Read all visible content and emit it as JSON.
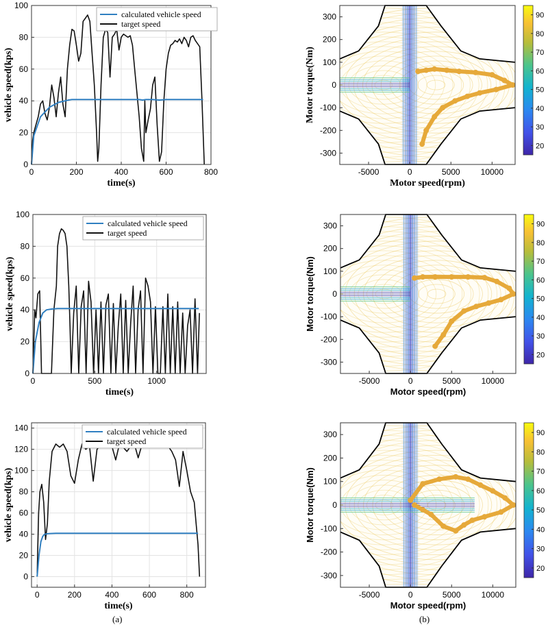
{
  "figure": {
    "caption_a": "(a)",
    "caption_b": "(b)"
  },
  "colors": {
    "calculated": "#2f7fc1",
    "target": "#111111",
    "operating_points": "#e6a93a",
    "boundary": "#000000"
  },
  "chart_data": [
    {
      "type": "line",
      "panel": "a1",
      "xlabel": "time(s)",
      "ylabel": "vehicle speed(kps)",
      "xlim": [
        0,
        800
      ],
      "ylim": [
        0,
        100
      ],
      "xticks": [
        0,
        200,
        400,
        600,
        800
      ],
      "yticks": [
        0,
        20,
        40,
        60,
        80,
        100
      ],
      "grid": true,
      "legend_position": "top-left",
      "series": [
        {
          "name": "calculated vehicle speed",
          "x": [
            0,
            10,
            40,
            80,
            120,
            150,
            165,
            180,
            200,
            300,
            350,
            400,
            480,
            495,
            510,
            540,
            570,
            600,
            700,
            750,
            765
          ],
          "y": [
            0,
            18,
            30,
            36,
            39,
            40,
            40.5,
            40.8,
            40.8,
            40.8,
            40.8,
            40.8,
            40.8,
            40.5,
            40.8,
            40.8,
            40.5,
            40.8,
            40.8,
            40.8,
            40.8
          ]
        },
        {
          "name": "target speed",
          "x": [
            0,
            5,
            10,
            20,
            30,
            40,
            50,
            60,
            70,
            80,
            90,
            100,
            110,
            120,
            130,
            140,
            150,
            160,
            170,
            180,
            190,
            200,
            210,
            220,
            230,
            240,
            250,
            260,
            270,
            280,
            290,
            295,
            300,
            310,
            320,
            330,
            340,
            350,
            360,
            370,
            380,
            390,
            400,
            410,
            420,
            430,
            440,
            450,
            460,
            470,
            480,
            490,
            500,
            505,
            510,
            520,
            530,
            540,
            550,
            560,
            570,
            580,
            590,
            600,
            610,
            620,
            630,
            640,
            650,
            660,
            670,
            680,
            690,
            700,
            710,
            720,
            730,
            740,
            750,
            760,
            770
          ],
          "y": [
            0,
            15,
            20,
            25,
            30,
            38,
            40,
            32,
            28,
            36,
            50,
            42,
            30,
            45,
            55,
            38,
            30,
            60,
            75,
            85,
            84,
            75,
            65,
            70,
            90,
            92,
            94,
            90,
            70,
            50,
            20,
            2,
            10,
            50,
            80,
            85,
            83,
            55,
            80,
            82,
            85,
            72,
            80,
            82,
            81,
            80,
            81,
            75,
            60,
            45,
            30,
            10,
            2,
            40,
            20,
            28,
            35,
            50,
            55,
            25,
            2,
            8,
            40,
            60,
            70,
            75,
            76,
            78,
            77,
            79,
            76,
            80,
            78,
            74,
            80,
            81,
            78,
            76,
            74,
            40,
            0
          ]
        }
      ]
    },
    {
      "type": "line",
      "panel": "a2",
      "xlabel": "time(s)",
      "ylabel": "vehicle speed(kps)",
      "xlim": [
        0,
        1400
      ],
      "ylim": [
        0,
        100
      ],
      "xticks": [
        0,
        500,
        1000
      ],
      "yticks": [
        0,
        20,
        40,
        60,
        80,
        100
      ],
      "grid": true,
      "legend_position": "top-right",
      "series": [
        {
          "name": "calculated vehicle speed",
          "x": [
            0,
            20,
            50,
            80,
            110,
            150,
            200,
            300,
            500,
            700,
            900,
            1000,
            1100,
            1340
          ],
          "y": [
            0,
            20,
            32,
            38,
            40,
            40.5,
            40.8,
            40.8,
            40.8,
            40.8,
            40.8,
            40.8,
            40.8,
            40.8
          ]
        },
        {
          "name": "target speed",
          "x": [
            0,
            15,
            25,
            40,
            55,
            70,
            90,
            110,
            130,
            150,
            170,
            190,
            200,
            215,
            230,
            245,
            260,
            275,
            290,
            300,
            310,
            330,
            350,
            370,
            390,
            410,
            430,
            450,
            470,
            490,
            510,
            530,
            550,
            570,
            590,
            610,
            630,
            650,
            670,
            690,
            710,
            730,
            750,
            770,
            790,
            810,
            830,
            850,
            870,
            890,
            910,
            930,
            950,
            970,
            990,
            1010,
            1030,
            1050,
            1070,
            1090,
            1110,
            1130,
            1150,
            1170,
            1190,
            1210,
            1230,
            1250,
            1270,
            1290,
            1310,
            1330,
            1345
          ],
          "y": [
            0,
            40,
            35,
            50,
            52,
            0,
            0,
            0,
            0,
            0,
            40,
            55,
            80,
            88,
            91,
            90,
            88,
            80,
            55,
            30,
            0,
            38,
            55,
            0,
            42,
            52,
            0,
            58,
            45,
            0,
            40,
            0,
            45,
            0,
            43,
            50,
            0,
            44,
            0,
            30,
            50,
            0,
            46,
            0,
            32,
            55,
            0,
            40,
            52,
            0,
            60,
            55,
            45,
            0,
            42,
            0,
            0,
            42,
            0,
            50,
            0,
            42,
            0,
            45,
            0,
            38,
            0,
            30,
            40,
            0,
            47,
            0,
            38
          ]
        }
      ]
    },
    {
      "type": "line",
      "panel": "a3",
      "xlabel": "time(s)",
      "ylabel": "vehicle speed(kps)",
      "xlim": [
        -30,
        900
      ],
      "ylim": [
        -10,
        145
      ],
      "xticks": [
        0,
        200,
        400,
        600,
        800
      ],
      "yticks": [
        0,
        20,
        40,
        60,
        80,
        100,
        120,
        140
      ],
      "grid": true,
      "legend_position": "top-right",
      "series": [
        {
          "name": "calculated vehicle speed",
          "x": [
            0,
            10,
            20,
            30,
            40,
            60,
            100,
            200,
            400,
            600,
            800,
            860
          ],
          "y": [
            0,
            20,
            33,
            38,
            40,
            40.5,
            40.8,
            40.8,
            40.8,
            40.8,
            40.8,
            40.8
          ]
        },
        {
          "name": "target speed",
          "x": [
            0,
            8,
            15,
            25,
            35,
            45,
            55,
            65,
            80,
            100,
            120,
            140,
            160,
            180,
            200,
            220,
            240,
            260,
            280,
            300,
            320,
            340,
            360,
            380,
            400,
            420,
            440,
            460,
            480,
            500,
            520,
            540,
            560,
            580,
            600,
            620,
            640,
            660,
            680,
            700,
            720,
            740,
            760,
            780,
            800,
            820,
            840,
            850,
            860,
            868
          ],
          "y": [
            0,
            60,
            80,
            87,
            70,
            35,
            50,
            90,
            118,
            125,
            122,
            125,
            118,
            95,
            88,
            110,
            125,
            120,
            123,
            90,
            120,
            124,
            122,
            125,
            123,
            110,
            125,
            122,
            118,
            123,
            125,
            112,
            124,
            122,
            125,
            123,
            122,
            124,
            125,
            123,
            118,
            110,
            85,
            118,
            100,
            80,
            70,
            50,
            30,
            0
          ]
        }
      ]
    },
    {
      "type": "heatmap",
      "panel": "b1",
      "xlabel": "Motor speed(rpm)",
      "ylabel": "Motor torque(Nm)",
      "xlim": [
        -8500,
        12800
      ],
      "ylim": [
        -350,
        350
      ],
      "xticks": [
        -5000,
        0,
        5000,
        10000
      ],
      "yticks": [
        -300,
        -200,
        -100,
        0,
        100,
        200,
        300
      ],
      "colorbar": {
        "ticks": [
          20,
          30,
          40,
          50,
          60,
          70,
          80,
          90
        ],
        "range": [
          15,
          95
        ]
      },
      "boundary": {
        "upper": {
          "x": [
            -8500,
            -6200,
            -3800,
            -3000,
            -1800,
            2000,
            3800,
            6200,
            8500,
            12800
          ],
          "y": [
            115,
            150,
            260,
            350,
            350,
            350,
            260,
            150,
            115,
            100
          ]
        },
        "lower": {
          "x": [
            -8500,
            -6200,
            -3800,
            -3000,
            -1800,
            2000,
            3800,
            6200,
            8500,
            12800
          ],
          "y": [
            -115,
            -150,
            -260,
            -350,
            -350,
            -350,
            -260,
            -150,
            -115,
            -100
          ]
        }
      },
      "operating_points": {
        "x": [
          1000,
          2000,
          3000,
          4500,
          6000,
          8000,
          10000,
          11500,
          12500,
          10500,
          8500,
          7000,
          5500,
          4000,
          3000,
          2000,
          1500
        ],
        "y": [
          60,
          65,
          70,
          65,
          60,
          55,
          45,
          20,
          0,
          -20,
          -35,
          -50,
          -70,
          -100,
          -140,
          -200,
          -260
        ]
      }
    },
    {
      "type": "heatmap",
      "panel": "b2",
      "xlabel": "Motor speed(rpm)",
      "ylabel": "Motor torque(Nm)",
      "xlim": [
        -8500,
        12800
      ],
      "ylim": [
        -350,
        350
      ],
      "xticks": [
        -5000,
        0,
        5000,
        10000
      ],
      "yticks": [
        -300,
        -200,
        -100,
        0,
        100,
        200,
        300
      ],
      "colorbar": {
        "ticks": [
          20,
          30,
          40,
          50,
          60,
          70,
          80,
          90
        ],
        "range": [
          15,
          95
        ]
      },
      "boundary": {
        "upper": {
          "x": [
            -8500,
            -6200,
            -3800,
            -3000,
            -1800,
            2000,
            3800,
            6200,
            8500,
            12800
          ],
          "y": [
            115,
            150,
            260,
            350,
            350,
            350,
            260,
            150,
            115,
            100
          ]
        },
        "lower": {
          "x": [
            -8500,
            -6200,
            -3800,
            -3000,
            -1800,
            2000,
            3800,
            6200,
            8500,
            12800
          ],
          "y": [
            -115,
            -150,
            -260,
            -350,
            -350,
            -350,
            -260,
            -150,
            -115,
            -100
          ]
        }
      },
      "operating_points": {
        "x": [
          500,
          1500,
          3000,
          5000,
          7000,
          9000,
          10500,
          12000,
          12500,
          11000,
          9500,
          8000,
          6500,
          5000,
          4000,
          3000
        ],
        "y": [
          70,
          75,
          75,
          75,
          75,
          72,
          55,
          25,
          0,
          -25,
          -40,
          -55,
          -75,
          -120,
          -180,
          -230
        ]
      }
    },
    {
      "type": "heatmap",
      "panel": "b3",
      "xlabel": "Motor speed(rpm)",
      "ylabel": "Motor torque(Nm)",
      "xlim": [
        -8500,
        12800
      ],
      "ylim": [
        -350,
        350
      ],
      "xticks": [
        -5000,
        0,
        5000,
        10000
      ],
      "yticks": [
        -300,
        -200,
        -100,
        0,
        100,
        200,
        300
      ],
      "colorbar": {
        "ticks": [
          20,
          30,
          40,
          50,
          60,
          70,
          80,
          90
        ],
        "range": [
          15,
          95
        ]
      },
      "boundary": {
        "upper": {
          "x": [
            -8500,
            -6200,
            -3800,
            -3000,
            -1800,
            2000,
            3800,
            6200,
            8500,
            12800
          ],
          "y": [
            115,
            150,
            260,
            350,
            350,
            350,
            260,
            150,
            115,
            100
          ]
        },
        "lower": {
          "x": [
            -8500,
            -6200,
            -3800,
            -3000,
            -1800,
            2000,
            3800,
            6200,
            8500,
            12800
          ],
          "y": [
            -115,
            -150,
            -260,
            -350,
            -350,
            -350,
            -260,
            -150,
            -115,
            -100
          ]
        }
      },
      "operating_points": {
        "x": [
          0,
          1500,
          3500,
          5500,
          7000,
          8500,
          10000,
          11500,
          12500,
          11000,
          9000,
          7500,
          6500,
          5500,
          4000,
          2500,
          1500,
          500
        ],
        "y": [
          20,
          90,
          110,
          120,
          110,
          85,
          60,
          30,
          0,
          -30,
          -50,
          -65,
          -85,
          -110,
          -90,
          -40,
          -20,
          0
        ]
      }
    }
  ]
}
